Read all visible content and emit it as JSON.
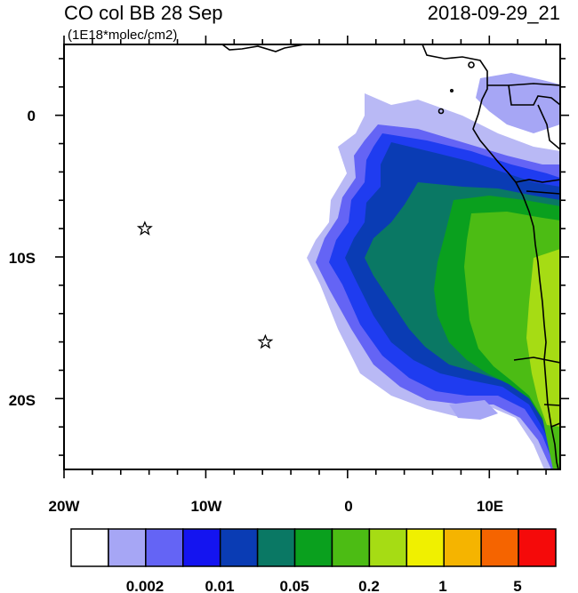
{
  "title_left": "CO col BB 28 Sep",
  "title_right": "2018-09-29_21",
  "units": "(1E18*molec/cm2)",
  "x_tick_labels": [
    "20W",
    "10W",
    "0",
    "10E"
  ],
  "y_tick_labels": [
    "0",
    "10S",
    "20S"
  ],
  "colorbar": {
    "colors": [
      "#ffffff",
      "#a6a6f5",
      "#6464f5",
      "#1414f0",
      "#0a3cb4",
      "#0a7864",
      "#0aa01e",
      "#4cbc14",
      "#a6dc14",
      "#f0f000",
      "#f5b400",
      "#f56400",
      "#f50a0a"
    ],
    "labels": [
      "0.002",
      "0.01",
      "0.05",
      "0.2",
      "1",
      "5"
    ]
  },
  "markers": [
    {
      "name": "star-marker-1",
      "lon": -14.3,
      "lat": -8
    },
    {
      "name": "star-marker-2",
      "lon": -5.8,
      "lat": -16
    }
  ],
  "colors": {
    "plume_blue": "#2a4ee8",
    "plume_dark": "#0a3c9c",
    "plume_teal": "#0a7864",
    "plume_green": "#0aa01e",
    "plume_lime": "#a6dc14"
  }
}
